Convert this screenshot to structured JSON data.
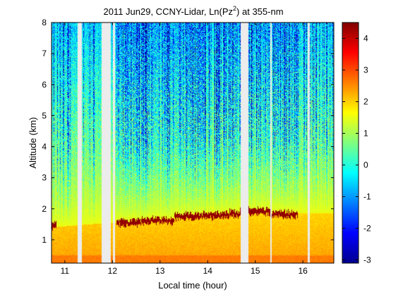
{
  "chart_data": {
    "type": "heatmap",
    "title_prefix": "2011 Jun29, CCNY-Lidar, Ln(Pz",
    "title_sup": "2",
    "title_suffix": ") at 355-nm",
    "xlabel": "Local time (hour)",
    "ylabel": "Altitude (km)",
    "xlim": [
      10.72,
      16.65
    ],
    "ylim": [
      0.25,
      8.0
    ],
    "xticks": [
      11,
      12,
      13,
      14,
      15,
      16
    ],
    "yticks": [
      1,
      2,
      3,
      4,
      5,
      6,
      7,
      8
    ],
    "colorbar": {
      "range": [
        -3.1,
        4.5
      ],
      "ticks": [
        -3,
        -2,
        -1,
        0,
        1,
        2,
        3,
        4
      ],
      "colormap": "jet"
    },
    "data_gaps": [
      {
        "start": 11.27,
        "end": 11.36
      },
      {
        "start": 11.77,
        "end": 11.96
      },
      {
        "start": 12.01,
        "end": 12.06
      },
      {
        "start": 14.7,
        "end": 14.86
      },
      {
        "start": 15.31,
        "end": 15.35
      },
      {
        "start": 16.1,
        "end": 16.14
      }
    ],
    "cloud_segments": [
      {
        "start": 10.72,
        "end": 10.83,
        "height": 1.45
      },
      {
        "start": 12.08,
        "end": 12.6,
        "height": 1.55
      },
      {
        "start": 12.6,
        "end": 13.3,
        "height": 1.62
      },
      {
        "start": 13.3,
        "end": 13.9,
        "height": 1.75
      },
      {
        "start": 13.9,
        "end": 14.45,
        "height": 1.8
      },
      {
        "start": 14.45,
        "end": 14.7,
        "height": 1.85
      },
      {
        "start": 14.86,
        "end": 15.31,
        "height": 1.92
      },
      {
        "start": 15.35,
        "end": 15.9,
        "height": 1.82
      }
    ],
    "boundary_layer_top": [
      {
        "x": 10.72,
        "y": 1.4
      },
      {
        "x": 11.5,
        "y": 1.5
      },
      {
        "x": 12.1,
        "y": 1.55
      },
      {
        "x": 13.0,
        "y": 1.62
      },
      {
        "x": 14.0,
        "y": 1.78
      },
      {
        "x": 15.0,
        "y": 1.9
      },
      {
        "x": 16.0,
        "y": 1.85
      },
      {
        "x": 16.65,
        "y": 1.85
      }
    ]
  }
}
